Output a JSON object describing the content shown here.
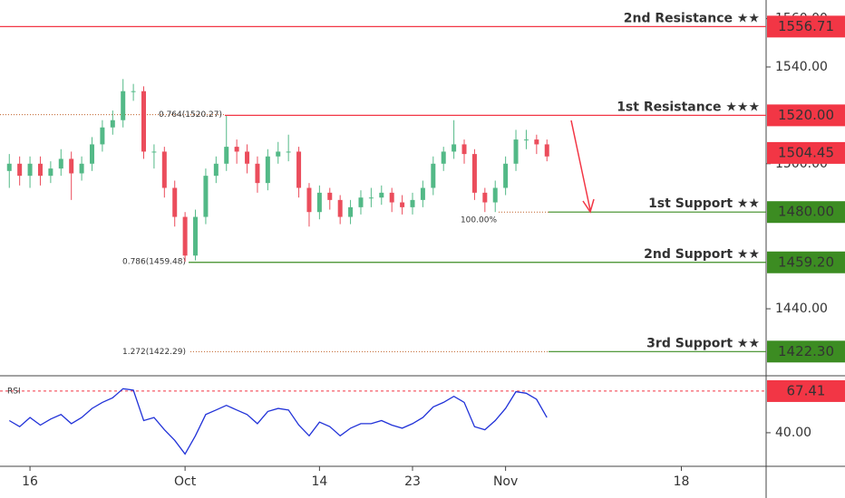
{
  "chart_data": {
    "type": "candlestick",
    "x": [
      13,
      14,
      15,
      16,
      17,
      18,
      19,
      20,
      21,
      22,
      23,
      24,
      25,
      26,
      27,
      28,
      29,
      30,
      31,
      32,
      33,
      34,
      35,
      36,
      37,
      38,
      39,
      40,
      41,
      42,
      43,
      44,
      45,
      46,
      47,
      48,
      49,
      50,
      51,
      52,
      53,
      54,
      55,
      56,
      57,
      58,
      59,
      60,
      61,
      62,
      63,
      64,
      65
    ],
    "open": [
      1497,
      1500,
      1495,
      1500,
      1495,
      1498,
      1502,
      1496,
      1500,
      1508,
      1515,
      1518,
      1530,
      1530,
      1505,
      1505,
      1490,
      1478,
      1462,
      1478,
      1495,
      1500,
      1507,
      1505,
      1500,
      1492,
      1503,
      1505,
      1505,
      1490,
      1480,
      1488,
      1485,
      1478,
      1482,
      1486,
      1486,
      1488,
      1484,
      1482,
      1485,
      1490,
      1500,
      1505,
      1508,
      1504,
      1488,
      1484,
      1490,
      1500,
      1510,
      1510,
      1508
    ],
    "high": [
      1504,
      1503,
      1503,
      1503,
      1501,
      1506,
      1505,
      1503,
      1511,
      1518,
      1522,
      1535,
      1533,
      1532,
      1508,
      1507,
      1493,
      1480,
      1481,
      1498,
      1503,
      1520,
      1510,
      1508,
      1503,
      1506,
      1509,
      1512,
      1507,
      1492,
      1491,
      1490,
      1487,
      1485,
      1489,
      1490,
      1491,
      1490,
      1487,
      1488,
      1493,
      1503,
      1507,
      1518,
      1510,
      1506,
      1490,
      1493,
      1503,
      1514,
      1514,
      1512,
      1510
    ],
    "low": [
      1490,
      1491,
      1490,
      1491,
      1492,
      1495,
      1485,
      1493,
      1497,
      1505,
      1512,
      1515,
      1526,
      1502,
      1498,
      1486,
      1474,
      1459.5,
      1460,
      1475,
      1492,
      1497,
      1500,
      1496,
      1488,
      1489,
      1500,
      1501,
      1486,
      1474,
      1477,
      1481,
      1475,
      1475,
      1479,
      1482,
      1483,
      1480,
      1479,
      1479,
      1482,
      1487,
      1497,
      1502,
      1500,
      1485,
      1480,
      1480,
      1487,
      1497,
      1506,
      1504,
      1501
    ],
    "close": [
      1500,
      1495,
      1500,
      1495,
      1498,
      1502,
      1496,
      1500,
      1508,
      1515,
      1518,
      1530,
      1530,
      1505,
      1505,
      1490,
      1478,
      1462,
      1478,
      1495,
      1500,
      1507,
      1505,
      1500,
      1492,
      1503,
      1505,
      1505,
      1490,
      1480,
      1488,
      1485,
      1478,
      1482,
      1486,
      1486,
      1488,
      1484,
      1482,
      1485,
      1490,
      1500,
      1505,
      1508,
      1504,
      1488,
      1484,
      1490,
      1500,
      1510,
      1510,
      1508,
      1503
    ],
    "up_color": "#53b987",
    "down_color": "#eb4d5c",
    "xlim": [
      12.1,
      86.2
    ],
    "xticks": [
      {
        "value": 15,
        "label": "16"
      },
      {
        "value": 30,
        "label": "Oct"
      },
      {
        "value": 43,
        "label": "14"
      },
      {
        "value": 52,
        "label": "23"
      },
      {
        "value": 61,
        "label": "Nov"
      },
      {
        "value": 78,
        "label": "18"
      }
    ],
    "ylim": [
      1412.3,
      1567.7
    ],
    "yticks": [
      {
        "value": 1440,
        "label": "1440.00"
      },
      {
        "value": 1500,
        "label": "1500.00"
      },
      {
        "value": 1540,
        "label": "1540.00"
      },
      {
        "value": 1560,
        "label": "1560.00"
      }
    ],
    "last_price": {
      "value": 1504.45,
      "label": "1504.45",
      "color": "#f23645"
    },
    "levels": [
      {
        "name": "2nd Resistance ★★",
        "value": 1556.71,
        "label": "1556.71",
        "color": "#f23645"
      },
      {
        "name": "1st Resistance ★★★",
        "value": 1520.0,
        "label": "1520.00",
        "color": "#f23645"
      },
      {
        "name": "1st Support ★★",
        "value": 1480.0,
        "label": "1480.00",
        "color": "#3c8c22"
      },
      {
        "name": "2nd Support ★★",
        "value": 1459.2,
        "label": "1459.20",
        "color": "#3c8c22"
      },
      {
        "name": "3rd Support ★★",
        "value": 1422.3,
        "label": "1422.30",
        "color": "#3c8c22"
      }
    ],
    "fib": [
      {
        "label": "0.764(1520.27)",
        "value": 1520.27,
        "color": "#c0622a"
      },
      {
        "label": "100.00%",
        "value": 1480,
        "color": "#c0622a"
      },
      {
        "label": "0.786(1459.48)",
        "value": 1459.48,
        "color": "#c0622a"
      },
      {
        "label": "1.272(1422.29)",
        "value": 1422.29,
        "color": "#c0622a"
      }
    ],
    "rsi": {
      "name": "RSI",
      "color": "#2132d8",
      "values": [
        48,
        44,
        50,
        45,
        49,
        52,
        46,
        50,
        56,
        60,
        63,
        69,
        68,
        48,
        50,
        42,
        35,
        26,
        38,
        52,
        55,
        58,
        55,
        52,
        46,
        54,
        56,
        55,
        45,
        38,
        47,
        44,
        38,
        43,
        46,
        46,
        48,
        45,
        43,
        46,
        50,
        57,
        60,
        64,
        60,
        44,
        42,
        48,
        56,
        67,
        66,
        62,
        50
      ],
      "y2lim": [
        17.9,
        77.5
      ],
      "y2ticks": [
        {
          "value": 40,
          "label": "40.00"
        }
      ],
      "level": {
        "value": 67.41,
        "label": "67.41",
        "color": "#f23645"
      }
    }
  }
}
